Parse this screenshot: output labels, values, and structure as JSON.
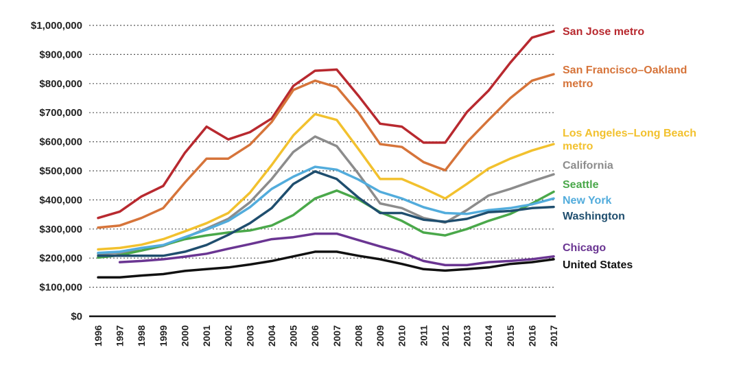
{
  "chart_data": {
    "type": "line",
    "title": "",
    "xlabel": "",
    "ylabel": "",
    "ylim": [
      0,
      1000000
    ],
    "yticks": [
      0,
      100000,
      200000,
      300000,
      400000,
      500000,
      600000,
      700000,
      800000,
      900000,
      1000000
    ],
    "ytick_labels": [
      "$0",
      "$100,000",
      "$200,000",
      "$300,000",
      "$400,000",
      "$500,000",
      "$600,000",
      "$700,000",
      "$800,000",
      "$900,000",
      "$1,000,000"
    ],
    "x": [
      "1996",
      "1997",
      "1998",
      "1999",
      "2000",
      "2001",
      "2002",
      "2003",
      "2004",
      "2005",
      "2006",
      "2007",
      "2008",
      "2009",
      "2010",
      "2011",
      "2012",
      "2013",
      "2014",
      "2015",
      "2016",
      "2017"
    ],
    "grid": "horizontal dotted",
    "series": [
      {
        "name": "San Jose metro",
        "label_lines": [
          "San Jose metro"
        ],
        "color": "#b8292f",
        "values": [
          338000,
          360000,
          412000,
          448000,
          562000,
          652000,
          608000,
          633000,
          680000,
          792000,
          844000,
          848000,
          758000,
          662000,
          652000,
          597000,
          597000,
          702000,
          776000,
          872000,
          958000,
          980000
        ]
      },
      {
        "name": "San Francisco–Oakland metro",
        "label_lines": [
          "San Francisco–Oakland",
          "metro"
        ],
        "color": "#d6743a",
        "values": [
          305000,
          312000,
          338000,
          372000,
          460000,
          542000,
          542000,
          590000,
          668000,
          778000,
          810000,
          788000,
          700000,
          592000,
          582000,
          530000,
          502000,
          598000,
          675000,
          750000,
          810000,
          832000
        ]
      },
      {
        "name": "Los Angeles–Long Beach metro",
        "label_lines": [
          "Los Angeles–Long Beach",
          "metro"
        ],
        "color": "#f2c12e",
        "values": [
          230000,
          235000,
          246000,
          265000,
          292000,
          320000,
          355000,
          425000,
          520000,
          622000,
          695000,
          675000,
          575000,
          472000,
          472000,
          440000,
          405000,
          455000,
          508000,
          542000,
          570000,
          592000
        ]
      },
      {
        "name": "California",
        "label_lines": [
          "California"
        ],
        "color": "#8c8c8c",
        "values": [
          215000,
          218000,
          226000,
          242000,
          270000,
          302000,
          335000,
          392000,
          472000,
          565000,
          618000,
          585000,
          490000,
          388000,
          372000,
          338000,
          322000,
          365000,
          415000,
          438000,
          464000,
          488000
        ]
      },
      {
        "name": "Seattle",
        "label_lines": [
          "Seattle"
        ],
        "color": "#4aa84a",
        "values": [
          202000,
          210000,
          226000,
          244000,
          265000,
          278000,
          288000,
          295000,
          312000,
          348000,
          405000,
          432000,
          402000,
          358000,
          328000,
          288000,
          278000,
          300000,
          328000,
          352000,
          388000,
          428000
        ]
      },
      {
        "name": "New York",
        "label_lines": [
          "New York"
        ],
        "color": "#52acdc",
        "values": [
          218000,
          222000,
          235000,
          245000,
          272000,
          298000,
          328000,
          375000,
          438000,
          480000,
          514000,
          504000,
          470000,
          428000,
          405000,
          375000,
          355000,
          352000,
          365000,
          372000,
          385000,
          405000
        ]
      },
      {
        "name": "Washington",
        "label_lines": [
          "Washington"
        ],
        "color": "#1f4e6e",
        "values": [
          208000,
          208000,
          208000,
          208000,
          222000,
          245000,
          280000,
          320000,
          372000,
          455000,
          498000,
          472000,
          408000,
          355000,
          355000,
          332000,
          325000,
          335000,
          358000,
          362000,
          372000,
          376000
        ]
      },
      {
        "name": "Chicago",
        "label_lines": [
          "Chicago"
        ],
        "color": "#6a3592",
        "values": [
          null,
          186000,
          190000,
          196000,
          205000,
          215000,
          232000,
          248000,
          265000,
          272000,
          284000,
          284000,
          262000,
          240000,
          220000,
          190000,
          176000,
          176000,
          186000,
          190000,
          196000,
          206000
        ]
      },
      {
        "name": "United States",
        "label_lines": [
          "United States"
        ],
        "color": "#111111",
        "values": [
          134000,
          134000,
          140000,
          145000,
          156000,
          162000,
          168000,
          178000,
          190000,
          206000,
          222000,
          222000,
          208000,
          196000,
          180000,
          162000,
          157000,
          162000,
          168000,
          180000,
          186000,
          196000
        ]
      }
    ]
  }
}
